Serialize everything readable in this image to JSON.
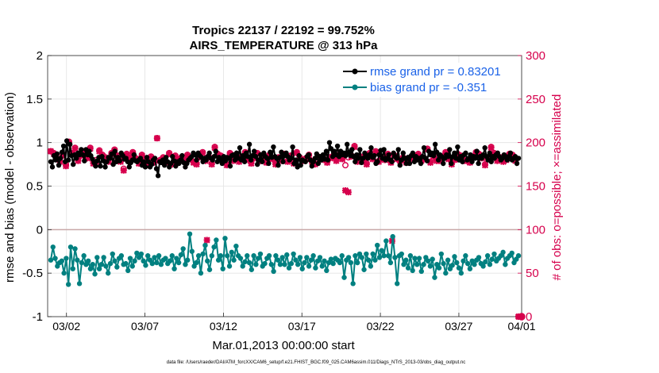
{
  "chart_data": {
    "type": "line",
    "title": "Tropics 22137 / 22192 = 99.752%",
    "subtitle": "AIRS_TEMPERATURE @ 313 hPa",
    "xlabel": "Mar.01,2013 00:00:00 start",
    "ylabel_left": "rmse and bias (model - observation)",
    "ylabel_right": "# of obs: o=possible; ×=assimilated",
    "footer": "data file: /Users/raeder/DAI/ATM_forcXX/CAM6_setup/f.e21.FHIST_BGC.f09_025.CAM6assim.011/Diags_NTrS_2013-03/obs_diag_output.nc",
    "xlim": [
      0.8,
      31
    ],
    "ylim_left": [
      -1,
      2
    ],
    "ylim_right": [
      0,
      300
    ],
    "x_ticks": [
      2,
      7,
      12,
      17,
      22,
      27,
      32
    ],
    "x_tick_labels": [
      "03/02",
      "03/07",
      "03/12",
      "03/17",
      "03/22",
      "03/27",
      "04/01"
    ],
    "y_ticks_left": [
      "-1",
      "-0.5",
      "0",
      "0.5",
      "1",
      "1.5",
      "2"
    ],
    "y_ticks_right": [
      "0",
      "50",
      "100",
      "150",
      "200",
      "250",
      "300"
    ],
    "legend_position": "top-right",
    "colors": {
      "rmse": "#000000",
      "bias": "#008080",
      "obs": "#d6004c",
      "zero": "#c8a8a8",
      "grid": "#e2e2e2"
    },
    "series": [
      {
        "name": "rmse grand pr = 0.83201",
        "key": "rmse",
        "axis": "left",
        "values": [
          0.78,
          0.72,
          0.85,
          0.8,
          0.87,
          0.74,
          0.82,
          0.89,
          0.96,
          0.78,
          1.02,
          0.8,
          0.98,
          0.85,
          0.75,
          0.86,
          0.82,
          0.88,
          0.86,
          0.92,
          0.86,
          0.79,
          0.92,
          0.86,
          0.9,
          0.85,
          0.81,
          0.77,
          0.73,
          0.79,
          0.83,
          0.73,
          0.84,
          0.79,
          0.72,
          0.78,
          0.83,
          0.82,
          0.87,
          0.75,
          0.9,
          0.78,
          0.83,
          0.79,
          0.88,
          0.85,
          0.81,
          0.82,
          0.78,
          0.72,
          0.77,
          0.8,
          0.86,
          0.79,
          0.78,
          0.8,
          0.82,
          0.74,
          0.78,
          0.72,
          0.83,
          0.78,
          0.72,
          0.75,
          0.8,
          0.82,
          0.7,
          0.62,
          0.78,
          0.77,
          0.8,
          0.74,
          0.83,
          0.78,
          0.72,
          0.76,
          0.84,
          0.79,
          0.73,
          0.78,
          0.76,
          0.8,
          0.85,
          0.77,
          0.72,
          0.76,
          0.8,
          0.82,
          0.84,
          0.88,
          0.86,
          0.8,
          0.88,
          0.85,
          0.83,
          0.78,
          0.82,
          0.8,
          0.84,
          0.88,
          0.82,
          0.8,
          0.84,
          0.9,
          0.78,
          0.83,
          0.8,
          0.76,
          0.84,
          0.79,
          0.83,
          0.82,
          0.73,
          0.85,
          0.86,
          0.8,
          0.88,
          0.82,
          0.94,
          0.8,
          0.85,
          0.78,
          0.88,
          0.84,
          0.98,
          0.8,
          0.85,
          0.9,
          0.84,
          0.75,
          0.8,
          0.86,
          0.78,
          0.88,
          0.84,
          0.82,
          0.76,
          0.89,
          0.83,
          0.95,
          0.84,
          0.82,
          0.74,
          0.83,
          0.89,
          0.78,
          0.85,
          0.88,
          0.84,
          0.8,
          0.82,
          0.95,
          0.76,
          0.8,
          0.72,
          0.85,
          0.74,
          0.8,
          0.79,
          0.78,
          0.84,
          0.86,
          0.8,
          0.73,
          0.78,
          0.82,
          0.87,
          0.76,
          0.84,
          0.8,
          0.86,
          0.81,
          0.9,
          0.8,
          1.0,
          0.93,
          0.84,
          0.9,
          0.86,
          0.96,
          0.84,
          0.9,
          0.86,
          0.88,
          0.85,
          0.98,
          0.89,
          0.85,
          0.92,
          0.84,
          0.78,
          0.86,
          0.82,
          0.92,
          0.77,
          0.82,
          0.88,
          0.85,
          0.82,
          0.86,
          0.94,
          0.83,
          0.85,
          0.76,
          0.78,
          0.86,
          0.91,
          0.82,
          0.92,
          0.8,
          0.82,
          0.86,
          0.8,
          0.78,
          0.88,
          0.84,
          0.82,
          0.92,
          0.74,
          0.8,
          0.88,
          0.82,
          0.76,
          0.83,
          0.76,
          0.85,
          0.88,
          0.78,
          0.84,
          0.8,
          0.82,
          0.76,
          0.84,
          0.94,
          0.82,
          0.79,
          0.9,
          0.86,
          0.88,
          0.85,
          0.98,
          0.89,
          0.8,
          0.86,
          0.84,
          0.76,
          0.82,
          0.86,
          0.84,
          0.92,
          0.76,
          0.84,
          0.88,
          0.82,
          0.95,
          0.8,
          0.84,
          0.78,
          0.86,
          0.88,
          0.8,
          0.82,
          0.86,
          0.78,
          0.84,
          0.82,
          0.9,
          0.76,
          0.84,
          0.82,
          0.86,
          0.94,
          0.84,
          0.8,
          0.88,
          0.78,
          0.84,
          0.82,
          0.86,
          0.88,
          0.84,
          0.8,
          0.82,
          0.86,
          0.84,
          0.8,
          0.84,
          0.88,
          0.8,
          0.82,
          0.84,
          0.76,
          0.82
        ]
      },
      {
        "name": "bias grand pr = -0.351",
        "key": "bias",
        "axis": "left",
        "values": [
          -0.35,
          -0.2,
          -0.33,
          -0.42,
          -0.38,
          -0.36,
          -0.5,
          -0.33,
          -0.63,
          -0.2,
          -0.45,
          -0.22,
          -0.35,
          -0.62,
          -0.38,
          -0.3,
          -0.4,
          -0.36,
          -0.45,
          -0.4,
          -0.51,
          -0.32,
          -0.45,
          -0.4,
          -0.32,
          -0.42,
          -0.5,
          -0.39,
          -0.28,
          -0.36,
          -0.43,
          -0.33,
          -0.3,
          -0.4,
          -0.39,
          -0.47,
          -0.33,
          -0.42,
          -0.36,
          -0.27,
          -0.32,
          -0.28,
          -0.36,
          -0.41,
          -0.3,
          -0.35,
          -0.39,
          -0.32,
          -0.38,
          -0.3,
          -0.4,
          -0.35,
          -0.33,
          -0.39,
          -0.36,
          -0.3,
          -0.45,
          -0.33,
          -0.38,
          -0.29,
          -0.22,
          -0.4,
          -0.35,
          -0.05,
          -0.25,
          -0.42,
          -0.38,
          -0.3,
          -0.5,
          -0.28,
          -0.18,
          -0.36,
          -0.46,
          -0.3,
          -0.2,
          -0.12,
          -0.35,
          -0.3,
          -0.45,
          -0.1,
          -0.3,
          -0.42,
          -0.26,
          -0.35,
          -0.19,
          -0.3,
          -0.33,
          -0.42,
          -0.37,
          -0.3,
          -0.38,
          -0.46,
          -0.3,
          -0.4,
          -0.33,
          -0.28,
          -0.42,
          -0.39,
          -0.33,
          -0.3,
          -0.4,
          -0.48,
          -0.3,
          -0.35,
          -0.4,
          -0.32,
          -0.4,
          -0.29,
          -0.44,
          -0.39,
          -0.28,
          -0.35,
          -0.4,
          -0.32,
          -0.45,
          -0.38,
          -0.32,
          -0.42,
          -0.35,
          -0.3,
          -0.44,
          -0.36,
          -0.32,
          -0.42,
          -0.36,
          -0.47,
          -0.38,
          -0.34,
          -0.39,
          -0.33,
          -0.35,
          -0.38,
          -0.3,
          -0.55,
          -0.35,
          -0.32,
          -0.38,
          -0.62,
          -0.3,
          -0.38,
          -0.28,
          -0.32,
          -0.46,
          -0.28,
          -0.35,
          -0.42,
          -0.28,
          -0.35,
          -0.18,
          -0.32,
          -0.24,
          -0.3,
          -0.13,
          -0.3,
          -0.38,
          -0.08,
          -0.32,
          -0.62,
          -0.3,
          -0.28,
          -0.4,
          -0.35,
          -0.44,
          -0.3,
          -0.47,
          -0.33,
          -0.4,
          -0.33,
          -0.48,
          -0.4,
          -0.32,
          -0.36,
          -0.42,
          -0.34,
          -0.55,
          -0.4,
          -0.44,
          -0.28,
          -0.39,
          -0.5,
          -0.35,
          -0.45,
          -0.41,
          -0.31,
          -0.38,
          -0.44,
          -0.5,
          -0.36,
          -0.3,
          -0.39,
          -0.45,
          -0.36,
          -0.4,
          -0.35,
          -0.32,
          -0.39,
          -0.42,
          -0.37,
          -0.3,
          -0.4,
          -0.34,
          -0.28,
          -0.36,
          -0.33,
          -0.3,
          -0.26,
          -0.4,
          -0.33,
          -0.3,
          -0.27,
          -0.38,
          -0.34,
          -0.3
        ]
      },
      {
        "name": "obs possible",
        "key": "possible",
        "axis": "right",
        "marker": "o",
        "values": [
          190,
          188,
          182,
          179,
          186,
          175,
          201,
          188,
          194,
          180,
          186,
          190,
          183,
          194,
          178,
          180,
          191,
          186,
          183,
          179,
          188,
          192,
          185,
          179,
          170,
          187,
          183,
          189,
          182,
          177,
          186,
          180,
          175,
          184,
          178,
          205,
          180,
          183,
          178,
          188,
          176,
          185,
          180,
          183,
          180,
          186,
          182,
          178,
          176,
          184,
          189,
          180,
          184,
          176,
          195,
          187,
          185,
          182,
          175,
          188,
          180,
          186,
          179,
          184,
          189,
          181,
          177,
          183,
          188,
          180,
          184,
          178,
          186,
          182,
          176,
          183,
          180,
          187,
          179,
          185,
          177,
          189,
          183,
          180,
          182,
          186,
          179,
          176,
          184,
          182,
          181,
          178,
          183,
          185,
          180,
          186,
          182,
          174,
          183,
          185,
          196,
          179,
          184,
          181,
          176,
          188,
          182,
          190,
          179,
          183,
          181,
          187,
          178,
          186,
          182,
          180,
          183,
          178,
          181,
          185,
          183,
          187,
          180,
          182,
          193,
          178,
          185,
          180,
          180,
          184,
          189,
          182,
          176,
          181,
          187,
          185,
          180,
          180,
          178,
          184,
          189,
          187,
          183,
          175,
          182,
          195,
          188,
          180,
          183,
          179,
          181,
          187,
          186,
          180,
          0
        ]
      },
      {
        "name": "obs assimilated",
        "key": "assimilated",
        "axis": "right",
        "marker": "x",
        "values": [
          190,
          187,
          181,
          178,
          185,
          173,
          200,
          187,
          193,
          179,
          185,
          189,
          182,
          193,
          176,
          178,
          190,
          185,
          182,
          178,
          187,
          191,
          184,
          178,
          168,
          186,
          182,
          188,
          181,
          176,
          185,
          179,
          174,
          183,
          177,
          205,
          179,
          182,
          177,
          187,
          175,
          184,
          179,
          182,
          179,
          185,
          181,
          177,
          175,
          183,
          188,
          179,
          183,
          175,
          194,
          186,
          184,
          181,
          174,
          187,
          179,
          185,
          178,
          183,
          188,
          180,
          176,
          182,
          187,
          179,
          183,
          177,
          185,
          181,
          175,
          182,
          179,
          186,
          178,
          184,
          176,
          188,
          182,
          179,
          181,
          185,
          178,
          175,
          183,
          181,
          180,
          177,
          182,
          184,
          179,
          185,
          181,
          145,
          143,
          184,
          195,
          178,
          183,
          180,
          175,
          187,
          181,
          189,
          178,
          182,
          180,
          186,
          177,
          185,
          181,
          179,
          182,
          177,
          180,
          184,
          182,
          186,
          179,
          181,
          192,
          177,
          184,
          179,
          179,
          183,
          188,
          181,
          175,
          180,
          186,
          184,
          179,
          179,
          177,
          183,
          188,
          186,
          182,
          174,
          181,
          194,
          187,
          179,
          182,
          178,
          180,
          186,
          185,
          179,
          0
        ]
      }
    ],
    "extra_markers": [
      {
        "series": "assimilated",
        "x": 10.95,
        "y": 88
      },
      {
        "series": "assimilated",
        "x": 22.75,
        "y": 87
      },
      {
        "series": "possible",
        "x": 31,
        "y": 0
      }
    ]
  }
}
